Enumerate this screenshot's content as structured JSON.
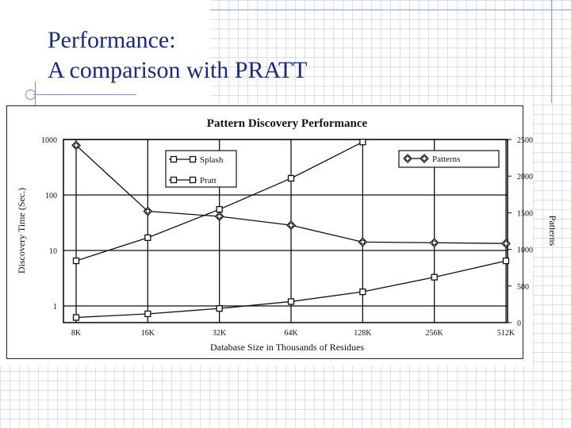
{
  "slide": {
    "title_line1": "Performance:",
    "title_line2": "A comparison with PRATT"
  },
  "chart_data": {
    "type": "line",
    "title": "Pattern Discovery Performance",
    "xlabel": "Database Size in Thousands of Residues",
    "ylabel": "Discovery Time (Sec.)",
    "y2label": "Patterns",
    "categories": [
      "8K",
      "16K",
      "32K",
      "64K",
      "128K",
      "256K",
      "512K"
    ],
    "y_scale": "log",
    "ylim": [
      0.5,
      1000
    ],
    "y_ticks": [
      1,
      10,
      100,
      1000
    ],
    "y_tick_labels": [
      "1",
      "10",
      "100",
      "1000"
    ],
    "y2lim": [
      0,
      2500
    ],
    "y2_ticks": [
      0,
      500,
      1000,
      1500,
      2000,
      2500
    ],
    "y2_tick_labels": [
      "0",
      "500",
      "1000",
      "1500",
      "2000",
      "2500"
    ],
    "grid": true,
    "series": [
      {
        "name": "Splash",
        "axis": "left",
        "marker": "square",
        "values": [
          0.62,
          0.72,
          0.9,
          1.2,
          1.8,
          3.3,
          6.5
        ]
      },
      {
        "name": "Pratt",
        "axis": "left",
        "marker": "square",
        "values": [
          6.5,
          17,
          55,
          200,
          900,
          null,
          null
        ]
      },
      {
        "name": "Patterns",
        "axis": "right",
        "marker": "diamond",
        "values": [
          2420,
          1520,
          1450,
          1330,
          1100,
          1090,
          1080
        ]
      }
    ],
    "legend": {
      "left_items": [
        "Splash",
        "Pratt"
      ],
      "right_items": [
        "Patterns"
      ]
    }
  }
}
